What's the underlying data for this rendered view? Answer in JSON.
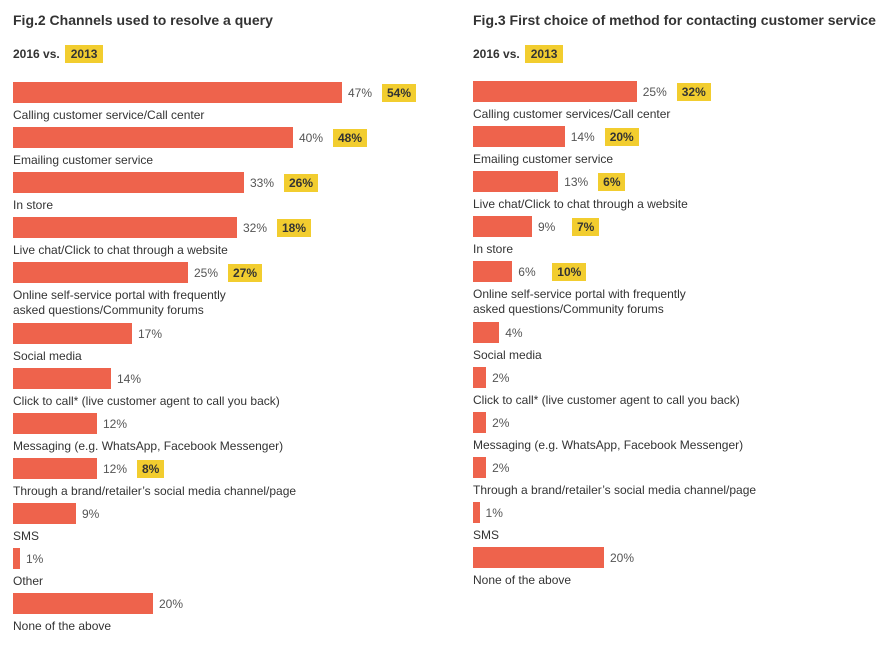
{
  "chart_data": [
    {
      "type": "bar",
      "orientation": "horizontal",
      "title": "Fig.2 Channels used to resolve a query",
      "comparison": {
        "current_label": "2016 vs.",
        "previous_label": "2013"
      },
      "colors": {
        "current": "#ee634c",
        "previous": "#f2cd2f"
      },
      "categories": [
        "Calling customer service/Call center",
        "Emailing customer service",
        "In store",
        "Live chat/Click to chat through a website",
        "Online self-service portal with frequently\nasked questions/Community forums",
        "Social media",
        "Click to call* (live customer agent to call you back)",
        "Messaging (e.g. WhatsApp, Facebook Messenger)",
        "Through a brand/retailer’s social media channel/page",
        "SMS",
        "Other",
        "None of the above"
      ],
      "series": [
        {
          "name": "2016",
          "values": [
            47,
            40,
            33,
            32,
            25,
            17,
            14,
            12,
            12,
            9,
            1,
            20
          ]
        },
        {
          "name": "2013",
          "values": [
            54,
            48,
            26,
            18,
            27,
            null,
            null,
            null,
            8,
            null,
            null,
            null
          ]
        }
      ],
      "unit": "%"
    },
    {
      "type": "bar",
      "orientation": "horizontal",
      "title": "Fig.3 First choice of method for contacting customer service",
      "comparison": {
        "current_label": "2016 vs.",
        "previous_label": "2013"
      },
      "colors": {
        "current": "#ee634c",
        "previous": "#f2cd2f"
      },
      "categories": [
        "Calling customer services/Call center",
        "Emailing customer service",
        "Live chat/Click to chat through a website",
        "In store",
        "Online self-service portal with frequently\nasked questions/Community forums",
        "Social media",
        "Click to call* (live customer agent to call you back)",
        "Messaging (e.g. WhatsApp, Facebook Messenger)",
        "Through a brand/retailer’s social media channel/page",
        "SMS",
        "None of the above"
      ],
      "series": [
        {
          "name": "2016",
          "values": [
            25,
            14,
            13,
            9,
            6,
            4,
            2,
            2,
            2,
            1,
            20
          ]
        },
        {
          "name": "2013",
          "values": [
            32,
            20,
            6,
            7,
            10,
            null,
            null,
            null,
            null,
            null,
            null
          ]
        }
      ],
      "unit": "%"
    }
  ]
}
